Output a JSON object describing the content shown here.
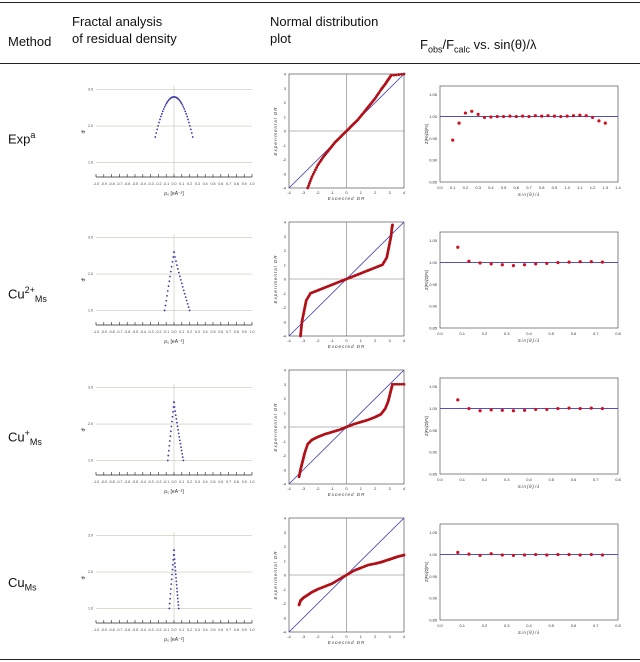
{
  "header": {
    "method": "Method",
    "fractal_line1": "Fractal analysis",
    "fractal_line2": "of residual density",
    "normal_line1": "Normal  distribution",
    "normal_line2": "plot",
    "fobs_title": "Fₒₓₛ/Fₗₐₗₗ vs. sin(θ)/λ",
    "fobs_parts": {
      "F1": "F",
      "sub1": "obs",
      "mid": "/F",
      "sub2": "calc",
      "tail": " vs. sin(θ)/λ"
    }
  },
  "rows": [
    {
      "label_main": "Exp",
      "label_sup": "a",
      "label_sub": ""
    },
    {
      "label_main": "Cu",
      "label_sup": "2+",
      "label_sub": "Ms"
    },
    {
      "label_main": "Cu",
      "label_sup": "+",
      "label_sub": "Ms"
    },
    {
      "label_main": "Cu",
      "label_sup": "",
      "label_sub": "Ms"
    }
  ],
  "colors": {
    "fractal_points": "#3a3aa8",
    "normal_points": "#b01018",
    "fobs_points": "#d01020",
    "grid": "#c8c8b4",
    "diagonal": "#3a3ab0"
  },
  "axis_labels": {
    "fractal_x": "ρ₀ [eA⁻³]",
    "fractal_y": "dᶠ",
    "normal_x": "Expected DR",
    "normal_y": "Experimental DR",
    "fobs_x": "Sin(θ)/λ",
    "fobs_y": "Σ|Fo|/Σ|Fc|"
  },
  "ticks": {
    "fractal_x": [
      "-1.0",
      "-0.9",
      "-0.8",
      "-0.7",
      "-0.6",
      "-0.5",
      "-0.4",
      "-0.3",
      "-0.2",
      "-0.1",
      "0.0",
      "0.1",
      "0.2",
      "0.3",
      "0.4",
      "0.5",
      "0.6",
      "0.7",
      "0.8",
      "0.9",
      "1.0"
    ],
    "fractal_y": [
      "1.0",
      "2.0",
      "3.0"
    ],
    "normal": [
      "-4",
      "-3",
      "-2",
      "-1",
      "0",
      "1",
      "2",
      "3",
      "4"
    ],
    "fobs_y": [
      "0.85",
      "0.90",
      "0.95",
      "1.00",
      "1.05"
    ],
    "fobs_x_row1": [
      "0.0",
      "0.1",
      "0.2",
      "0.3",
      "0.4",
      "0.5",
      "0.6",
      "0.7",
      "0.8",
      "0.9",
      "1.0",
      "1.1",
      "1.2",
      "1.3",
      "1.4"
    ],
    "fobs_x_other": [
      "0.0",
      "0.1",
      "0.2",
      "0.3",
      "0.4",
      "0.5",
      "0.6",
      "0.7",
      "0.8"
    ]
  },
  "chart_data": [
    {
      "type": "scatter",
      "panel": "fractal",
      "row": "Exp",
      "xlim": [
        -1.0,
        1.0
      ],
      "ylim": [
        0.6,
        3.1
      ],
      "shape": "parabola",
      "x_range": [
        -0.24,
        0.24
      ],
      "peak": 2.8,
      "end": 1.7
    },
    {
      "type": "scatter",
      "panel": "normal",
      "row": "Exp",
      "xlim": [
        -4,
        4
      ],
      "ylim": [
        -4,
        4
      ],
      "x": [
        -2.7,
        -2.4,
        -2.0,
        -1.6,
        -1.2,
        -0.8,
        -0.4,
        0.0,
        0.4,
        0.8,
        1.2,
        1.6,
        2.0,
        2.4,
        2.7,
        2.9,
        3.1,
        4.0
      ],
      "y": [
        -4.0,
        -3.2,
        -2.4,
        -1.8,
        -1.3,
        -0.8,
        -0.4,
        0.0,
        0.4,
        0.8,
        1.3,
        1.8,
        2.3,
        2.9,
        3.3,
        3.6,
        3.9,
        4.0
      ]
    },
    {
      "type": "scatter",
      "panel": "fobs",
      "row": "Exp",
      "xlim": [
        0.0,
        1.4
      ],
      "ylim": [
        0.85,
        1.07
      ],
      "x": [
        0.1,
        0.15,
        0.2,
        0.25,
        0.3,
        0.35,
        0.4,
        0.45,
        0.5,
        0.55,
        0.6,
        0.65,
        0.7,
        0.75,
        0.8,
        0.85,
        0.9,
        0.95,
        1.0,
        1.05,
        1.1,
        1.15,
        1.2,
        1.25,
        1.3
      ],
      "y": [
        0.946,
        0.985,
        1.008,
        1.012,
        1.005,
        0.998,
        0.999,
        1.0,
        1.0,
        1.001,
        1.0,
        1.001,
        1.0,
        1.002,
        1.001,
        1.002,
        1.001,
        1.0,
        1.001,
        1.002,
        1.003,
        1.002,
        0.998,
        0.99,
        0.985
      ]
    },
    {
      "type": "scatter",
      "panel": "fractal",
      "row": "Cu2+Ms",
      "xlim": [
        -1.0,
        1.0
      ],
      "ylim": [
        0.6,
        3.1
      ],
      "shape": "peak",
      "x_left": -0.12,
      "x_right": 0.2,
      "peak_x": 0.0,
      "peak": 2.6,
      "end": 1.0
    },
    {
      "type": "scatter",
      "panel": "normal",
      "row": "Cu2+Ms",
      "xlim": [
        -4,
        4
      ],
      "ylim": [
        -4,
        4
      ],
      "x": [
        -3.2,
        -3.15,
        -3.1,
        -3.0,
        -2.9,
        -2.8,
        -2.5,
        -2.0,
        -1.5,
        -1.0,
        -0.5,
        0.0,
        0.5,
        1.0,
        1.5,
        2.0,
        2.5,
        2.8,
        2.9,
        3.0,
        3.1,
        3.15,
        3.2
      ],
      "y": [
        -4.0,
        -3.5,
        -3.0,
        -2.5,
        -2.0,
        -1.5,
        -1.0,
        -0.8,
        -0.6,
        -0.4,
        -0.2,
        0.0,
        0.2,
        0.4,
        0.6,
        0.8,
        1.0,
        1.5,
        2.0,
        2.5,
        3.0,
        3.5,
        3.8
      ]
    },
    {
      "type": "scatter",
      "panel": "fobs",
      "row": "Cu2+Ms",
      "xlim": [
        0.0,
        0.8
      ],
      "ylim": [
        0.85,
        1.07
      ],
      "x": [
        0.08,
        0.13,
        0.18,
        0.23,
        0.28,
        0.33,
        0.38,
        0.43,
        0.48,
        0.53,
        0.58,
        0.63,
        0.68,
        0.73
      ],
      "y": [
        1.035,
        1.003,
        0.999,
        0.997,
        0.995,
        0.993,
        0.995,
        0.997,
        0.998,
        1.0,
        1.001,
        1.002,
        1.002,
        1.001
      ]
    },
    {
      "type": "scatter",
      "panel": "fractal",
      "row": "Cu+Ms",
      "xlim": [
        -1.0,
        1.0
      ],
      "ylim": [
        0.6,
        3.1
      ],
      "shape": "peak",
      "x_left": -0.08,
      "x_right": 0.12,
      "peak_x": 0.0,
      "peak": 2.6,
      "end": 1.0
    },
    {
      "type": "scatter",
      "panel": "normal",
      "row": "Cu+Ms",
      "xlim": [
        -4,
        4
      ],
      "ylim": [
        -4,
        4
      ],
      "x": [
        -3.3,
        -3.2,
        -3.1,
        -3.0,
        -2.9,
        -2.7,
        -2.4,
        -2.0,
        -1.5,
        -1.0,
        -0.5,
        0.0,
        0.5,
        1.0,
        1.5,
        2.0,
        2.4,
        2.7,
        2.9,
        3.0,
        3.1,
        3.2,
        4.0
      ],
      "y": [
        -3.5,
        -3.0,
        -2.6,
        -2.2,
        -1.8,
        -1.2,
        -0.9,
        -0.7,
        -0.5,
        -0.35,
        -0.2,
        0.0,
        0.2,
        0.35,
        0.5,
        0.7,
        0.9,
        1.3,
        1.8,
        2.2,
        2.6,
        3.0,
        3.0
      ]
    },
    {
      "type": "scatter",
      "panel": "fobs",
      "row": "Cu+Ms",
      "xlim": [
        0.0,
        0.8
      ],
      "ylim": [
        0.85,
        1.07
      ],
      "x": [
        0.08,
        0.13,
        0.18,
        0.23,
        0.28,
        0.33,
        0.38,
        0.43,
        0.48,
        0.53,
        0.58,
        0.63,
        0.68,
        0.73
      ],
      "y": [
        1.02,
        1.0,
        0.995,
        0.997,
        0.996,
        0.995,
        0.996,
        0.998,
        0.998,
        1.0,
        1.001,
        1.0,
        1.001,
        1.0
      ]
    },
    {
      "type": "scatter",
      "panel": "fractal",
      "row": "CuMs",
      "xlim": [
        -1.0,
        1.0
      ],
      "ylim": [
        0.6,
        3.1
      ],
      "shape": "peak",
      "x_left": -0.06,
      "x_right": 0.06,
      "peak_x": 0.0,
      "peak": 2.6,
      "end": 1.0
    },
    {
      "type": "scatter",
      "panel": "normal",
      "row": "CuMs",
      "xlim": [
        -4,
        4
      ],
      "ylim": [
        -4,
        4
      ],
      "x": [
        -3.3,
        -3.2,
        -3.0,
        -2.7,
        -2.4,
        -2.0,
        -1.5,
        -1.0,
        -0.5,
        0.0,
        0.5,
        1.0,
        1.5,
        2.0,
        2.4,
        2.7,
        3.0,
        3.3,
        3.6,
        4.0
      ],
      "y": [
        -2.1,
        -1.8,
        -1.6,
        -1.4,
        -1.2,
        -1.0,
        -0.8,
        -0.6,
        -0.3,
        0.0,
        0.3,
        0.5,
        0.7,
        0.8,
        0.9,
        1.0,
        1.1,
        1.2,
        1.3,
        1.4
      ]
    },
    {
      "type": "scatter",
      "panel": "fobs",
      "row": "CuMs",
      "xlim": [
        0.0,
        0.8
      ],
      "ylim": [
        0.85,
        1.07
      ],
      "x": [
        0.08,
        0.13,
        0.18,
        0.23,
        0.28,
        0.33,
        0.38,
        0.43,
        0.48,
        0.53,
        0.58,
        0.63,
        0.68,
        0.73
      ],
      "y": [
        1.005,
        1.001,
        0.998,
        1.002,
        0.999,
        0.998,
        0.999,
        1.0,
        0.999,
        1.0,
        1.0,
        0.999,
        1.0,
        0.999
      ]
    }
  ]
}
